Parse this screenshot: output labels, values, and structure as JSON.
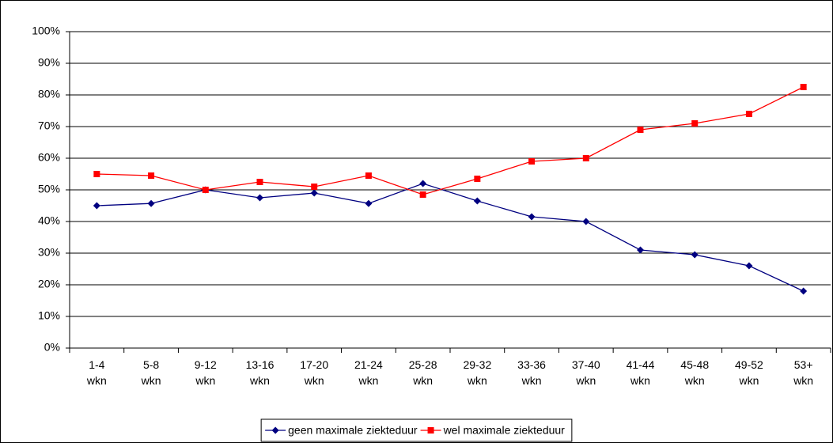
{
  "chart_data": {
    "type": "line",
    "categories": [
      "1-4\nwkn",
      "5-8\nwkn",
      "9-12\nwkn",
      "13-16\nwkn",
      "17-20\nwkn",
      "21-24\nwkn",
      "25-28\nwkn",
      "29-32\nwkn",
      "33-36\nwkn",
      "37-40\nwkn",
      "41-44\nwkn",
      "45-48\nwkn",
      "49-52\nwkn",
      "53+\nwkn"
    ],
    "series": [
      {
        "name": "geen maximale ziekteduur",
        "color": "#000080",
        "marker": "diamond",
        "values": [
          45,
          45.7,
          50,
          47.5,
          49,
          45.7,
          52,
          46.5,
          41.5,
          40,
          31,
          29.5,
          26,
          18
        ]
      },
      {
        "name": "wel maximale ziekteduur",
        "color": "#ff0000",
        "marker": "square",
        "values": [
          55,
          54.5,
          50,
          52.5,
          51,
          54.5,
          48.5,
          53.5,
          59,
          60,
          69,
          71,
          74,
          82.5
        ]
      }
    ],
    "ylim": [
      0,
      100
    ],
    "yticks": [
      {
        "value": 0,
        "label": "0%"
      },
      {
        "value": 10,
        "label": "10%"
      },
      {
        "value": 20,
        "label": "20%"
      },
      {
        "value": 30,
        "label": "30%"
      },
      {
        "value": 40,
        "label": "40%"
      },
      {
        "value": 50,
        "label": "50%"
      },
      {
        "value": 60,
        "label": "60%"
      },
      {
        "value": 70,
        "label": "70%"
      },
      {
        "value": 80,
        "label": "80%"
      },
      {
        "value": 90,
        "label": "90%"
      },
      {
        "value": 100,
        "label": "100%"
      }
    ],
    "grid": true,
    "legend": "bottom"
  }
}
